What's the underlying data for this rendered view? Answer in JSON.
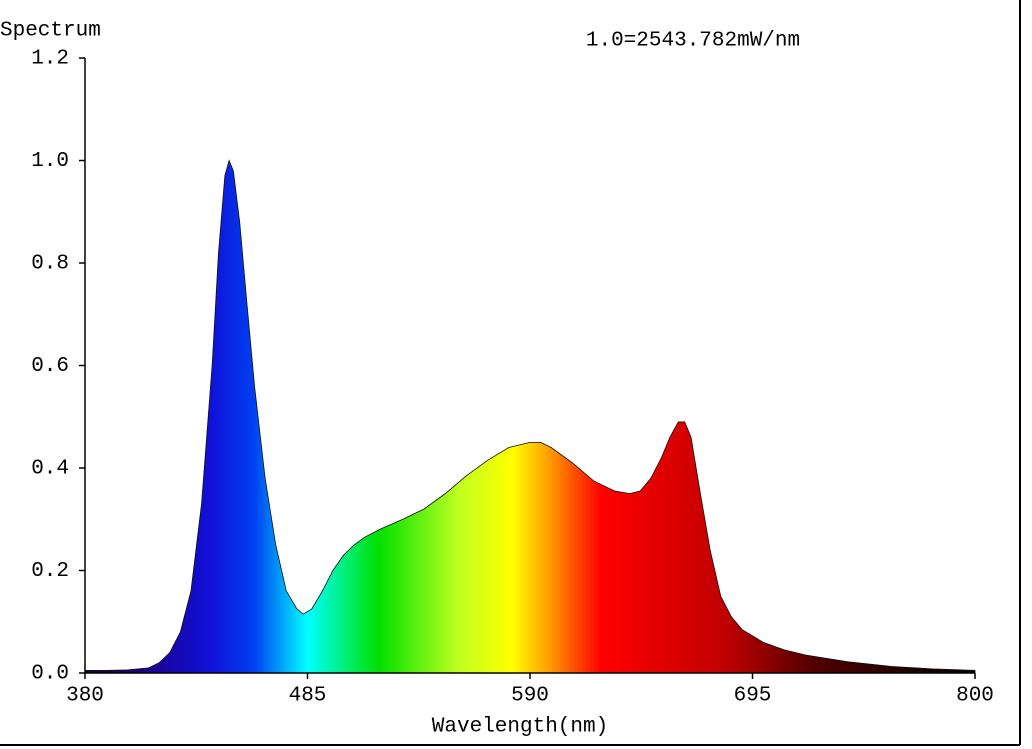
{
  "chart_data": {
    "type": "area",
    "title": "Spectrum",
    "annotation": "1.0=2543.782mW/nm",
    "x_label": "Wavelength(nm)",
    "x": [
      380,
      390,
      400,
      410,
      415,
      420,
      425,
      430,
      435,
      440,
      443,
      446,
      448,
      450,
      453,
      456,
      460,
      465,
      470,
      475,
      480,
      483,
      487,
      492,
      497,
      502,
      507,
      512,
      519,
      530,
      540,
      550,
      560,
      570,
      580,
      590,
      595,
      600,
      610,
      620,
      630,
      637,
      642,
      647,
      652,
      656,
      660,
      663,
      666,
      670,
      675,
      680,
      685,
      690,
      700,
      710,
      720,
      740,
      760,
      780,
      800
    ],
    "values": [
      0.005,
      0.005,
      0.006,
      0.01,
      0.02,
      0.04,
      0.08,
      0.16,
      0.33,
      0.6,
      0.82,
      0.97,
      1.0,
      0.98,
      0.88,
      0.74,
      0.56,
      0.38,
      0.25,
      0.16,
      0.125,
      0.115,
      0.125,
      0.16,
      0.2,
      0.23,
      0.25,
      0.265,
      0.28,
      0.3,
      0.32,
      0.35,
      0.385,
      0.415,
      0.44,
      0.45,
      0.45,
      0.44,
      0.41,
      0.375,
      0.355,
      0.35,
      0.355,
      0.38,
      0.42,
      0.46,
      0.49,
      0.49,
      0.46,
      0.36,
      0.24,
      0.15,
      0.11,
      0.085,
      0.06,
      0.045,
      0.035,
      0.022,
      0.013,
      0.008,
      0.005
    ],
    "xlim": [
      380,
      800
    ],
    "xticks": [
      380,
      485,
      590,
      695,
      800
    ],
    "ylim": [
      0,
      1.2
    ],
    "yticks": [
      {
        "value": 0,
        "label": "0.0"
      },
      0.2,
      0.4,
      0.6,
      0.8,
      {
        "value": 1,
        "label": "1.0"
      },
      1.2
    ]
  }
}
